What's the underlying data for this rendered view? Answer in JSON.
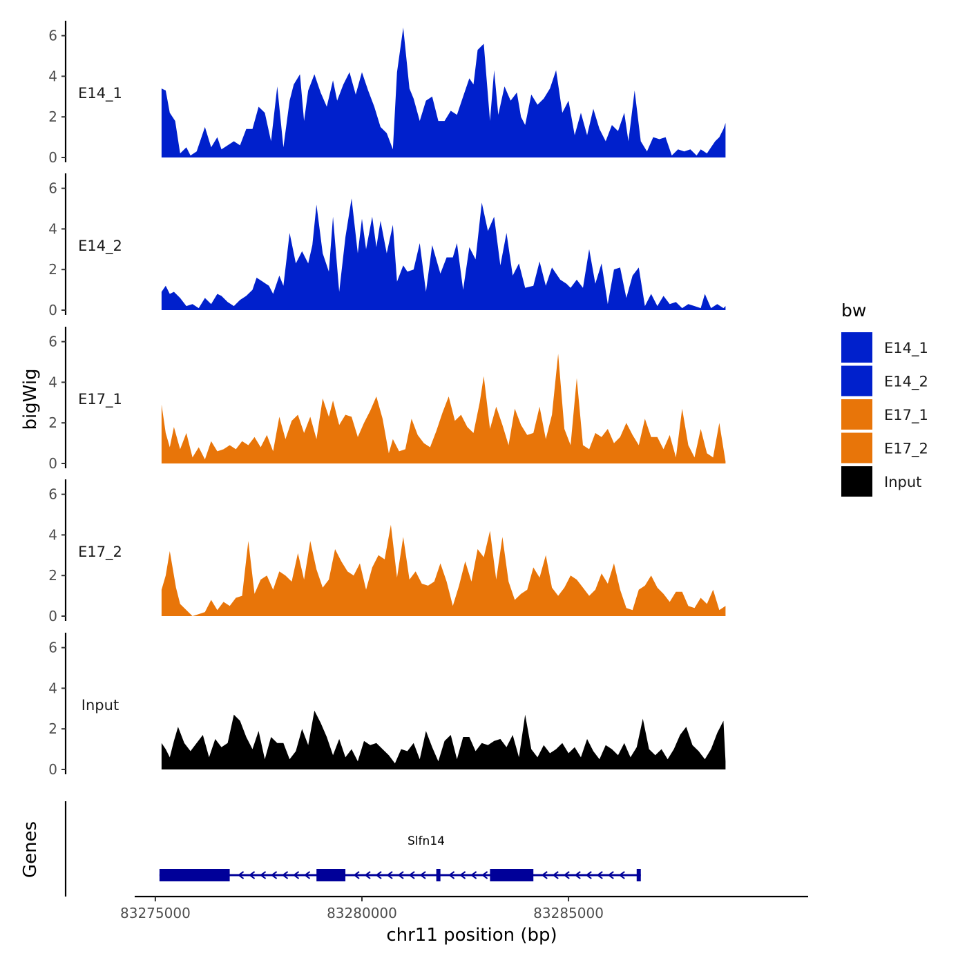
{
  "chart_data": {
    "type": "area",
    "title": "",
    "xlabel": "chr11 position (bp)",
    "ylabel": "bigWig",
    "genes_label": "Genes",
    "xlim": [
      83274500,
      83290800
    ],
    "ylim": [
      0,
      6.6
    ],
    "x_ticks": [
      83275000,
      83280000,
      83285000
    ],
    "x_tick_labels": [
      "83275000",
      "83280000",
      "83285000"
    ],
    "y_ticks": [
      0,
      2,
      4,
      6
    ],
    "y_tick_labels": [
      "0",
      "2",
      "4",
      "6"
    ],
    "legend_title": "bw",
    "legend": [
      {
        "name": "E14_1",
        "color": "#0020CC"
      },
      {
        "name": "E14_2",
        "color": "#0020CC"
      },
      {
        "name": "E17_1",
        "color": "#E87509"
      },
      {
        "name": "E17_2",
        "color": "#E87509"
      },
      {
        "name": "Input",
        "color": "#000000"
      }
    ],
    "series": [
      {
        "name": "E14_1",
        "color": "#0020CC",
        "x": [
          83275150,
          83275250,
          83275350,
          83275480,
          83275600,
          83275750,
          83275850,
          83276000,
          83276200,
          83276350,
          83276500,
          83276600,
          83276750,
          83276900,
          83277050,
          83277200,
          83277350,
          83277500,
          83277650,
          83277800,
          83277950,
          83278100,
          83278250,
          83278350,
          83278500,
          83278600,
          83278700,
          83278850,
          83279000,
          83279150,
          83279300,
          83279400,
          83279550,
          83279700,
          83279850,
          83280000,
          83280150,
          83280300,
          83280450,
          83280600,
          83280750,
          83280850,
          83281000,
          83281150,
          83281250,
          83281400,
          83281550,
          83281700,
          83281850,
          83282000,
          83282150,
          83282300,
          83282450,
          83282600,
          83282700,
          83282800,
          83282950,
          83283100,
          83283200,
          83283300,
          83283450,
          83283600,
          83283750,
          83283850,
          83283950,
          83284100,
          83284250,
          83284400,
          83284550,
          83284700,
          83284850,
          83285000,
          83285150,
          83285300,
          83285450,
          83285600,
          83285750,
          83285900,
          83286050,
          83286200,
          83286350,
          83286450,
          83286600,
          83286750,
          83286900,
          83287050,
          83287200,
          83287350,
          83287500,
          83287650,
          83287800,
          83287950,
          83288100,
          83288200,
          83288350,
          83288450,
          83288550,
          83288650,
          83288750,
          83288800
        ],
        "y": [
          3.4,
          3.3,
          2.2,
          1.8,
          0.2,
          0.5,
          0.1,
          0.3,
          1.5,
          0.5,
          1.0,
          0.4,
          0.6,
          0.8,
          0.6,
          1.4,
          1.4,
          2.5,
          2.2,
          0.8,
          3.5,
          0.5,
          2.8,
          3.6,
          4.1,
          1.8,
          3.3,
          4.1,
          3.2,
          2.5,
          3.8,
          2.8,
          3.6,
          4.2,
          3.1,
          4.2,
          3.3,
          2.5,
          1.5,
          1.2,
          0.4,
          4.2,
          6.4,
          3.4,
          2.9,
          1.8,
          2.8,
          3.0,
          1.8,
          1.8,
          2.3,
          2.1,
          3.0,
          3.9,
          3.6,
          5.3,
          5.6,
          1.8,
          4.3,
          2.1,
          3.5,
          2.8,
          3.2,
          2.0,
          1.6,
          3.1,
          2.6,
          2.9,
          3.4,
          4.3,
          2.2,
          2.8,
          1.1,
          2.2,
          1.1,
          2.4,
          1.4,
          0.8,
          1.6,
          1.3,
          2.2,
          0.8,
          3.3,
          0.8,
          0.3,
          1.0,
          0.9,
          1.0,
          0.1,
          0.4,
          0.3,
          0.4,
          0.1,
          0.4,
          0.2,
          0.5,
          0.8,
          1.0,
          1.4,
          1.7
        ]
      },
      {
        "name": "E14_2",
        "color": "#0020CC",
        "x": [
          83275150,
          83275250,
          83275350,
          83275450,
          83275600,
          83275750,
          83275900,
          83276050,
          83276200,
          83276350,
          83276500,
          83276600,
          83276750,
          83276900,
          83277050,
          83277200,
          83277350,
          83277450,
          83277600,
          83277750,
          83277850,
          83278000,
          83278100,
          83278250,
          83278400,
          83278550,
          83278700,
          83278800,
          83278900,
          83279050,
          83279200,
          83279300,
          83279450,
          83279600,
          83279750,
          83279900,
          83280000,
          83280100,
          83280250,
          83280350,
          83280450,
          83280600,
          83280750,
          83280850,
          83281000,
          83281100,
          83281250,
          83281400,
          83281550,
          83281700,
          83281900,
          83282050,
          83282200,
          83282300,
          83282450,
          83282600,
          83282750,
          83282900,
          83283050,
          83283200,
          83283350,
          83283500,
          83283650,
          83283800,
          83283950,
          83284150,
          83284300,
          83284450,
          83284600,
          83284800,
          83284950,
          83285050,
          83285200,
          83285350,
          83285500,
          83285650,
          83285800,
          83285950,
          83286100,
          83286250,
          83286400,
          83286550,
          83286700,
          83286850,
          83287000,
          83287150,
          83287300,
          83287450,
          83287600,
          83287750,
          83287900,
          83288050,
          83288200,
          83288300,
          83288450,
          83288600,
          83288750,
          83288800
        ],
        "y": [
          0.9,
          1.2,
          0.8,
          0.9,
          0.6,
          0.2,
          0.3,
          0.1,
          0.6,
          0.3,
          0.8,
          0.7,
          0.4,
          0.2,
          0.5,
          0.7,
          1.0,
          1.6,
          1.4,
          1.2,
          0.8,
          1.7,
          1.2,
          3.8,
          2.3,
          2.9,
          2.3,
          3.2,
          5.2,
          2.8,
          1.9,
          4.6,
          0.9,
          3.6,
          5.5,
          2.8,
          4.5,
          3.0,
          4.6,
          3.1,
          4.4,
          2.8,
          4.2,
          1.4,
          2.2,
          1.9,
          2.0,
          3.3,
          0.9,
          3.2,
          1.8,
          2.6,
          2.6,
          3.3,
          1.0,
          3.1,
          2.5,
          5.3,
          3.9,
          4.6,
          2.2,
          3.8,
          1.7,
          2.3,
          1.1,
          1.2,
          2.4,
          1.2,
          2.1,
          1.5,
          1.3,
          1.1,
          1.5,
          1.1,
          3.0,
          1.3,
          2.3,
          0.3,
          2.0,
          2.1,
          0.6,
          1.7,
          2.1,
          0.2,
          0.8,
          0.2,
          0.7,
          0.3,
          0.4,
          0.1,
          0.3,
          0.2,
          0.1,
          0.8,
          0.1,
          0.3,
          0.1,
          0.2
        ]
      },
      {
        "name": "E17_1",
        "color": "#E87509",
        "x": [
          83275150,
          83275250,
          83275350,
          83275450,
          83275600,
          83275750,
          83275900,
          83276050,
          83276200,
          83276350,
          83276500,
          83276650,
          83276800,
          83276950,
          83277100,
          83277250,
          83277400,
          83277550,
          83277700,
          83277850,
          83278000,
          83278150,
          83278300,
          83278450,
          83278600,
          83278750,
          83278900,
          83279050,
          83279200,
          83279300,
          83279450,
          83279600,
          83279750,
          83279900,
          83280050,
          83280200,
          83280350,
          83280500,
          83280650,
          83280750,
          83280900,
          83281050,
          83281200,
          83281350,
          83281500,
          83281650,
          83281800,
          83281950,
          83282100,
          83282250,
          83282400,
          83282550,
          83282700,
          83282850,
          83282950,
          83283100,
          83283250,
          83283400,
          83283550,
          83283700,
          83283850,
          83284000,
          83284150,
          83284300,
          83284450,
          83284600,
          83284750,
          83284900,
          83285050,
          83285200,
          83285350,
          83285500,
          83285650,
          83285800,
          83285950,
          83286100,
          83286250,
          83286400,
          83286550,
          83286700,
          83286850,
          83287000,
          83287150,
          83287300,
          83287450,
          83287600,
          83287750,
          83287900,
          83288050,
          83288200,
          83288350,
          83288500,
          83288650,
          83288800
        ],
        "y": [
          2.9,
          1.5,
          0.8,
          1.8,
          0.7,
          1.5,
          0.3,
          0.8,
          0.2,
          1.1,
          0.6,
          0.7,
          0.9,
          0.7,
          1.1,
          0.9,
          1.3,
          0.8,
          1.4,
          0.6,
          2.3,
          1.2,
          2.1,
          2.4,
          1.5,
          2.3,
          1.2,
          3.2,
          2.3,
          3.1,
          1.9,
          2.4,
          2.3,
          1.3,
          2.0,
          2.6,
          3.3,
          2.2,
          0.5,
          1.2,
          0.6,
          0.7,
          2.2,
          1.4,
          1.0,
          0.8,
          1.6,
          2.5,
          3.3,
          2.1,
          2.4,
          1.8,
          1.5,
          3.0,
          4.3,
          1.7,
          2.8,
          1.9,
          0.9,
          2.7,
          1.9,
          1.4,
          1.5,
          2.8,
          1.2,
          2.4,
          5.4,
          1.7,
          0.9,
          4.2,
          0.9,
          0.7,
          1.5,
          1.3,
          1.7,
          1.0,
          1.3,
          2.0,
          1.4,
          0.9,
          2.2,
          1.3,
          1.3,
          0.7,
          1.4,
          0.3,
          2.7,
          0.9,
          0.3,
          1.7,
          0.5,
          0.3,
          2.0,
          0.1
        ]
      },
      {
        "name": "E17_2",
        "color": "#E87509",
        "x": [
          83275150,
          83275250,
          83275350,
          83275500,
          83275600,
          83275750,
          83275900,
          83276050,
          83276200,
          83276350,
          83276500,
          83276650,
          83276800,
          83276950,
          83277100,
          83277250,
          83277400,
          83277550,
          83277700,
          83277850,
          83278000,
          83278150,
          83278300,
          83278450,
          83278600,
          83278750,
          83278900,
          83279050,
          83279200,
          83279350,
          83279500,
          83279650,
          83279800,
          83279950,
          83280100,
          83280250,
          83280400,
          83280550,
          83280700,
          83280850,
          83281000,
          83281150,
          83281300,
          83281450,
          83281600,
          83281750,
          83281900,
          83282050,
          83282200,
          83282350,
          83282500,
          83282650,
          83282800,
          83282950,
          83283100,
          83283250,
          83283400,
          83283550,
          83283700,
          83283850,
          83284000,
          83284150,
          83284300,
          83284450,
          83284600,
          83284750,
          83284900,
          83285050,
          83285200,
          83285350,
          83285500,
          83285650,
          83285800,
          83285950,
          83286100,
          83286250,
          83286400,
          83286550,
          83286700,
          83286850,
          83287000,
          83287150,
          83287300,
          83287450,
          83287600,
          83287750,
          83287900,
          83288050,
          83288200,
          83288350,
          83288500,
          83288650,
          83288800
        ],
        "y": [
          1.3,
          2.0,
          3.2,
          1.4,
          0.6,
          0.3,
          0.0,
          0.1,
          0.2,
          0.8,
          0.3,
          0.7,
          0.5,
          0.9,
          1.0,
          3.7,
          1.1,
          1.8,
          2.0,
          1.3,
          2.2,
          2.0,
          1.7,
          3.1,
          1.8,
          3.7,
          2.3,
          1.4,
          1.8,
          3.3,
          2.7,
          2.2,
          2.0,
          2.6,
          1.3,
          2.4,
          3.0,
          2.8,
          4.5,
          1.9,
          3.9,
          1.8,
          2.2,
          1.6,
          1.5,
          1.7,
          2.6,
          1.7,
          0.5,
          1.5,
          2.7,
          1.7,
          3.3,
          2.9,
          4.2,
          1.8,
          3.9,
          1.7,
          0.8,
          1.1,
          1.3,
          2.4,
          1.9,
          3.0,
          1.4,
          1.0,
          1.4,
          2.0,
          1.8,
          1.4,
          1.0,
          1.3,
          2.1,
          1.6,
          2.6,
          1.3,
          0.4,
          0.3,
          1.3,
          1.5,
          2.0,
          1.4,
          1.1,
          0.7,
          1.2,
          1.2,
          0.5,
          0.4,
          0.9,
          0.6,
          1.3,
          0.3,
          0.5
        ]
      },
      {
        "name": "Input",
        "color": "#000000",
        "x": [
          83275150,
          83275250,
          83275350,
          83275450,
          83275550,
          83275700,
          83275850,
          83276000,
          83276150,
          83276300,
          83276450,
          83276600,
          83276750,
          83276900,
          83277050,
          83277200,
          83277350,
          83277500,
          83277650,
          83277800,
          83277950,
          83278100,
          83278250,
          83278400,
          83278550,
          83278700,
          83278850,
          83279000,
          83279150,
          83279300,
          83279450,
          83279600,
          83279750,
          83279900,
          83280050,
          83280200,
          83280350,
          83280500,
          83280650,
          83280800,
          83280950,
          83281100,
          83281250,
          83281400,
          83281550,
          83281700,
          83281850,
          83282000,
          83282150,
          83282300,
          83282450,
          83282600,
          83282750,
          83282900,
          83283050,
          83283200,
          83283350,
          83283500,
          83283650,
          83283800,
          83283950,
          83284100,
          83284250,
          83284400,
          83284550,
          83284700,
          83284850,
          83285000,
          83285150,
          83285300,
          83285450,
          83285600,
          83285750,
          83285900,
          83286050,
          83286200,
          83286350,
          83286500,
          83286650,
          83286800,
          83286950,
          83287100,
          83287250,
          83287400,
          83287550,
          83287700,
          83287850,
          83288000,
          83288150,
          83288300,
          83288450,
          83288600,
          83288750,
          83288800
        ],
        "y": [
          1.3,
          1.0,
          0.6,
          1.4,
          2.1,
          1.3,
          0.9,
          1.3,
          1.7,
          0.6,
          1.5,
          1.1,
          1.3,
          2.7,
          2.4,
          1.6,
          1.0,
          1.9,
          0.5,
          1.6,
          1.3,
          1.3,
          0.5,
          0.9,
          2.0,
          1.2,
          2.9,
          2.3,
          1.6,
          0.7,
          1.5,
          0.6,
          1.0,
          0.4,
          1.4,
          1.2,
          1.3,
          1.0,
          0.7,
          0.3,
          1.0,
          0.9,
          1.3,
          0.5,
          1.9,
          1.1,
          0.4,
          1.4,
          1.7,
          0.5,
          1.6,
          1.6,
          0.9,
          1.3,
          1.2,
          1.4,
          1.5,
          1.1,
          1.7,
          0.6,
          2.7,
          1.0,
          0.6,
          1.2,
          0.8,
          1.0,
          1.3,
          0.8,
          1.1,
          0.6,
          1.5,
          0.9,
          0.5,
          1.2,
          1.0,
          0.7,
          1.3,
          0.6,
          1.1,
          2.5,
          1.0,
          0.7,
          1.0,
          0.5,
          1.0,
          1.7,
          2.1,
          1.2,
          0.9,
          0.5,
          1.0,
          1.8,
          2.4,
          0.4
        ]
      }
    ],
    "gene": {
      "name": "Slfn14",
      "strand": "-",
      "color": "#000099",
      "start": 83275100,
      "end": 83286750,
      "exons": [
        {
          "start": 83275100,
          "end": 83276800
        },
        {
          "start": 83278900,
          "end": 83279600
        },
        {
          "start": 83281800,
          "end": 83281900
        },
        {
          "start": 83283100,
          "end": 83284150
        },
        {
          "start": 83286650,
          "end": 83286750
        }
      ]
    }
  }
}
